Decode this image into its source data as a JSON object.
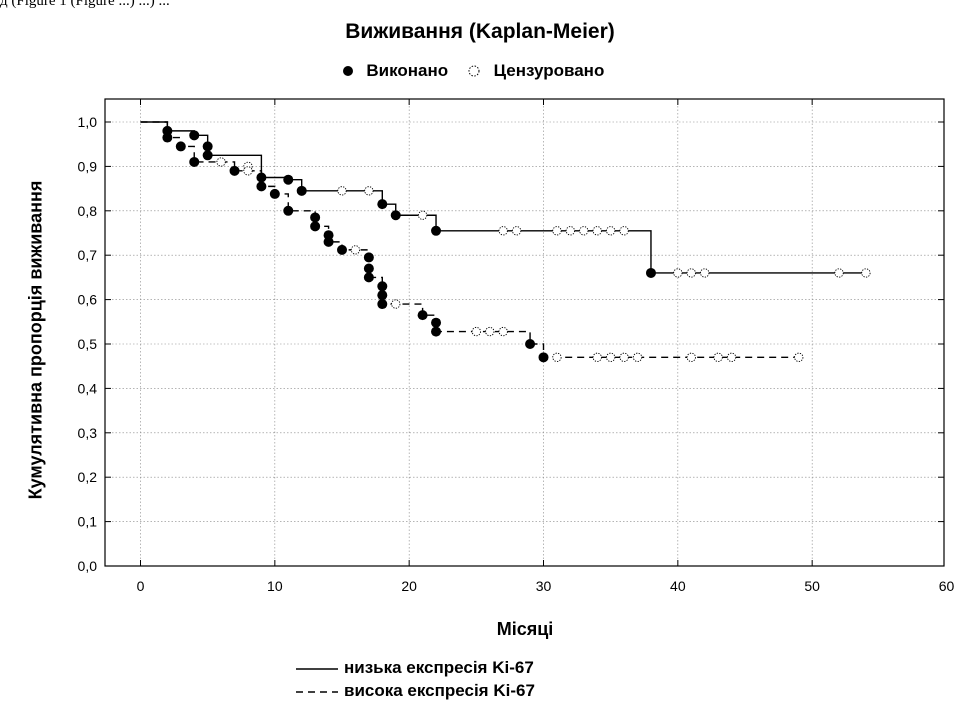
{
  "top_caption": "д          (Figure 1 (Figure ...) ...) ...",
  "chart_data": {
    "type": "line",
    "title": "Виживання (Kaplan-Meier)",
    "xlabel": "Місяці",
    "ylabel": "Кумулятивна пропорція виживання",
    "xlim": [
      0,
      60
    ],
    "ylim": [
      0.0,
      1.0
    ],
    "x_ticks": [
      "0",
      "10",
      "20",
      "30",
      "40",
      "50",
      "60"
    ],
    "y_ticks": [
      "0,0",
      "0,1",
      "0,2",
      "0,3",
      "0,4",
      "0,5",
      "0,6",
      "0,7",
      "0,8",
      "0,9",
      "1,0"
    ],
    "grid": true,
    "marker_legend": [
      {
        "label": "Виконано",
        "marker": "filled-circle"
      },
      {
        "label": "Цензуровано",
        "marker": "open-dotted-circle"
      }
    ],
    "series": [
      {
        "name": "низька експресія Ki-67",
        "line_style": "solid",
        "steps": [
          [
            0,
            1.0
          ],
          [
            2,
            0.98
          ],
          [
            4,
            0.97
          ],
          [
            5,
            0.945
          ],
          [
            5,
            0.925
          ],
          [
            9,
            0.875
          ],
          [
            11,
            0.87
          ],
          [
            12,
            0.845
          ],
          [
            18,
            0.815
          ],
          [
            19,
            0.79
          ],
          [
            22,
            0.755
          ],
          [
            38,
            0.66
          ],
          [
            54,
            0.66
          ]
        ],
        "events": [
          [
            2,
            0.98
          ],
          [
            4,
            0.97
          ],
          [
            5,
            0.945
          ],
          [
            5,
            0.925
          ],
          [
            9,
            0.875
          ],
          [
            11,
            0.87
          ],
          [
            12,
            0.845
          ],
          [
            18,
            0.815
          ],
          [
            19,
            0.79
          ],
          [
            22,
            0.755
          ],
          [
            38,
            0.66
          ]
        ],
        "censored": [
          [
            8,
            0.9
          ],
          [
            11,
            0.87
          ],
          [
            15,
            0.845
          ],
          [
            17,
            0.845
          ],
          [
            21,
            0.79
          ],
          [
            27,
            0.755
          ],
          [
            28,
            0.755
          ],
          [
            31,
            0.755
          ],
          [
            32,
            0.755
          ],
          [
            33,
            0.755
          ],
          [
            34,
            0.755
          ],
          [
            35,
            0.755
          ],
          [
            36,
            0.755
          ],
          [
            40,
            0.66
          ],
          [
            41,
            0.66
          ],
          [
            42,
            0.66
          ],
          [
            52,
            0.66
          ],
          [
            54,
            0.66
          ]
        ]
      },
      {
        "name": "висока експресія Ki-67",
        "line_style": "dashed",
        "steps": [
          [
            0,
            1.0
          ],
          [
            2,
            0.965
          ],
          [
            3,
            0.945
          ],
          [
            4,
            0.91
          ],
          [
            7,
            0.89
          ],
          [
            9,
            0.855
          ],
          [
            10,
            0.838
          ],
          [
            11,
            0.8
          ],
          [
            13,
            0.785
          ],
          [
            13,
            0.765
          ],
          [
            14,
            0.745
          ],
          [
            14,
            0.73
          ],
          [
            15,
            0.712
          ],
          [
            17,
            0.695
          ],
          [
            17,
            0.67
          ],
          [
            17,
            0.65
          ],
          [
            18,
            0.63
          ],
          [
            18,
            0.61
          ],
          [
            18,
            0.59
          ],
          [
            21,
            0.565
          ],
          [
            22,
            0.548
          ],
          [
            22,
            0.528
          ],
          [
            29,
            0.5
          ],
          [
            30,
            0.47
          ],
          [
            49,
            0.47
          ]
        ],
        "events": [
          [
            2,
            0.965
          ],
          [
            3,
            0.945
          ],
          [
            4,
            0.91
          ],
          [
            7,
            0.89
          ],
          [
            9,
            0.855
          ],
          [
            10,
            0.838
          ],
          [
            11,
            0.8
          ],
          [
            13,
            0.785
          ],
          [
            13,
            0.765
          ],
          [
            14,
            0.745
          ],
          [
            14,
            0.73
          ],
          [
            15,
            0.712
          ],
          [
            17,
            0.695
          ],
          [
            17,
            0.67
          ],
          [
            17,
            0.65
          ],
          [
            18,
            0.63
          ],
          [
            18,
            0.61
          ],
          [
            18,
            0.59
          ],
          [
            21,
            0.565
          ],
          [
            22,
            0.548
          ],
          [
            22,
            0.528
          ],
          [
            29,
            0.5
          ],
          [
            30,
            0.47
          ]
        ],
        "censored": [
          [
            6,
            0.91
          ],
          [
            8,
            0.89
          ],
          [
            16,
            0.712
          ],
          [
            19,
            0.59
          ],
          [
            25,
            0.528
          ],
          [
            26,
            0.528
          ],
          [
            27,
            0.528
          ],
          [
            31,
            0.47
          ],
          [
            34,
            0.47
          ],
          [
            35,
            0.47
          ],
          [
            36,
            0.47
          ],
          [
            37,
            0.47
          ],
          [
            41,
            0.47
          ],
          [
            43,
            0.47
          ],
          [
            44,
            0.47
          ],
          [
            49,
            0.47
          ]
        ]
      }
    ]
  }
}
